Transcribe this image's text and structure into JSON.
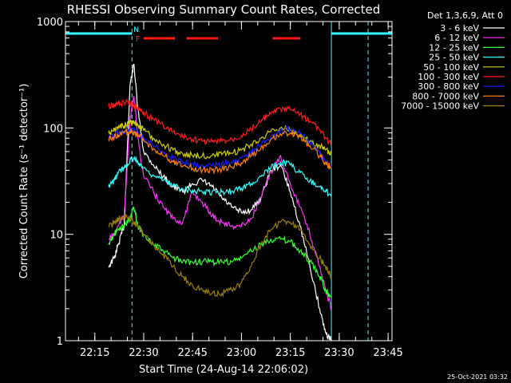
{
  "chart_data": {
    "type": "line",
    "title": "RHESSI Observing Summary Count Rates, Corrected",
    "xlabel": "Start Time (24-Aug-14 22:06:02)",
    "ylabel": "Corrected Count Rate (s⁻¹ detector⁻¹)",
    "ylog": true,
    "ylim": [
      1,
      1000
    ],
    "xlim": [
      22.1,
      23.77
    ],
    "x_ticks": [
      "22:15",
      "22:30",
      "22:45",
      "23:00",
      "23:15",
      "23:30",
      "23:45"
    ],
    "x_tick_values": [
      22.25,
      22.5,
      22.75,
      23.0,
      23.25,
      23.5,
      23.75
    ],
    "y_ticks": [
      "1",
      "10",
      "100",
      "1000"
    ],
    "y_tick_values": [
      1,
      10,
      100,
      1000
    ],
    "legend_title": "Det 1,3,6,9, Att 0",
    "legend_position": "right",
    "footer_timestamp": "25-Oct-2021 03:32",
    "flare_marker_label": "F",
    "night_marker_label": "N",
    "night_intervals": [
      [
        22.1,
        22.44
      ],
      [
        23.46,
        23.77
      ]
    ],
    "saa_lines": [
      22.44,
      23.75
    ],
    "flare_intervals": [
      [
        22.5,
        22.66
      ],
      [
        22.72,
        22.88
      ],
      [
        23.16,
        23.3
      ]
    ],
    "series": [
      {
        "name": "3 - 6 keV",
        "color": "#ffffff",
        "x": [
          22.32,
          22.35,
          22.37,
          22.4,
          22.43,
          22.45,
          22.47,
          22.5,
          22.55,
          22.6,
          22.65,
          22.7,
          22.75,
          22.8,
          22.85,
          22.9,
          22.95,
          23.0,
          23.05,
          23.1,
          23.15,
          23.2,
          23.25,
          23.3,
          23.35,
          23.4,
          23.43,
          23.46
        ],
        "y": [
          5,
          6,
          8,
          12,
          250,
          400,
          150,
          60,
          45,
          35,
          28,
          25,
          30,
          32,
          28,
          22,
          18,
          16,
          17,
          22,
          40,
          45,
          25,
          12,
          5,
          2,
          1.2,
          1
        ]
      },
      {
        "name": "6 - 12 keV",
        "color": "#ff33ff",
        "x": [
          22.32,
          22.35,
          22.37,
          22.4,
          22.43,
          22.45,
          22.47,
          22.5,
          22.55,
          22.6,
          22.65,
          22.7,
          22.75,
          22.8,
          22.85,
          22.9,
          22.95,
          23.0,
          23.05,
          23.1,
          23.15,
          23.2,
          23.25,
          23.3,
          23.35,
          23.4,
          23.43,
          23.46
        ],
        "y": [
          9,
          10,
          12,
          15,
          120,
          200,
          80,
          35,
          25,
          18,
          14,
          13,
          25,
          20,
          15,
          13,
          12,
          12,
          14,
          22,
          38,
          55,
          30,
          18,
          10,
          5,
          3,
          2
        ]
      },
      {
        "name": "12 - 25 keV",
        "color": "#33ff33",
        "x": [
          22.32,
          22.35,
          22.37,
          22.4,
          22.43,
          22.45,
          22.47,
          22.5,
          22.55,
          22.6,
          22.65,
          22.7,
          22.75,
          22.8,
          22.85,
          22.9,
          22.95,
          23.0,
          23.05,
          23.1,
          23.15,
          23.2,
          23.25,
          23.3,
          23.35,
          23.4,
          23.43,
          23.46
        ],
        "y": [
          8,
          10,
          11,
          12,
          14,
          18,
          12,
          10,
          8,
          7,
          6,
          5.5,
          5.5,
          5.5,
          5.5,
          5.5,
          5.5,
          6,
          7,
          8,
          9,
          9,
          8.5,
          7,
          5.5,
          4,
          3,
          2.5
        ]
      },
      {
        "name": "25 - 50 keV",
        "color": "#33ffff",
        "x": [
          22.32,
          22.35,
          22.37,
          22.4,
          22.43,
          22.45,
          22.47,
          22.5,
          22.55,
          22.6,
          22.65,
          22.7,
          22.75,
          22.8,
          22.85,
          22.9,
          22.95,
          23.0,
          23.05,
          23.1,
          23.15,
          23.2,
          23.25,
          23.3,
          23.35,
          23.4,
          23.43,
          23.46
        ],
        "y": [
          28,
          32,
          38,
          42,
          50,
          52,
          48,
          42,
          36,
          32,
          29,
          27,
          26,
          25,
          25,
          25,
          25.5,
          27,
          30,
          35,
          42,
          48,
          45,
          38,
          32,
          28,
          25,
          24
        ]
      },
      {
        "name": "50 - 100 keV",
        "color": "#cccc00",
        "x": [
          22.32,
          22.35,
          22.37,
          22.4,
          22.43,
          22.45,
          22.47,
          22.5,
          22.55,
          22.6,
          22.65,
          22.7,
          22.75,
          22.8,
          22.85,
          22.9,
          22.95,
          23.0,
          23.05,
          23.1,
          23.15,
          23.2,
          23.25,
          23.3,
          23.35,
          23.4,
          23.43,
          23.46
        ],
        "y": [
          90,
          95,
          100,
          105,
          110,
          115,
          108,
          95,
          80,
          70,
          62,
          57,
          55,
          55,
          55,
          56,
          58,
          62,
          70,
          80,
          92,
          100,
          95,
          85,
          75,
          68,
          62,
          58
        ]
      },
      {
        "name": "100 - 300 keV",
        "color": "#ff1a1a",
        "x": [
          22.32,
          22.35,
          22.37,
          22.4,
          22.43,
          22.45,
          22.47,
          22.5,
          22.55,
          22.6,
          22.65,
          22.7,
          22.75,
          22.8,
          22.85,
          22.9,
          22.95,
          23.0,
          23.05,
          23.1,
          23.15,
          23.2,
          23.25,
          23.3,
          23.35,
          23.4,
          23.43,
          23.46
        ],
        "y": [
          160,
          165,
          170,
          172,
          170,
          165,
          155,
          140,
          120,
          105,
          92,
          83,
          78,
          75,
          74,
          75,
          78,
          85,
          98,
          115,
          135,
          150,
          148,
          135,
          115,
          95,
          80,
          70
        ]
      },
      {
        "name": "300 - 800 keV",
        "color": "#1a1aff",
        "x": [
          22.32,
          22.35,
          22.37,
          22.4,
          22.43,
          22.45,
          22.47,
          22.5,
          22.55,
          22.6,
          22.65,
          22.7,
          22.75,
          22.8,
          22.85,
          22.9,
          22.95,
          23.0,
          23.05,
          23.1,
          23.15,
          23.2,
          23.25,
          23.3,
          23.35,
          23.4,
          23.43,
          23.46
        ],
        "y": [
          82,
          86,
          90,
          93,
          95,
          95,
          90,
          80,
          68,
          58,
          52,
          48,
          46,
          45,
          45,
          46,
          48,
          52,
          60,
          70,
          82,
          95,
          98,
          88,
          72,
          58,
          48,
          42
        ]
      },
      {
        "name": "800 - 7000 keV",
        "color": "#ff8000",
        "x": [
          22.32,
          22.35,
          22.37,
          22.4,
          22.43,
          22.45,
          22.47,
          22.5,
          22.55,
          22.6,
          22.65,
          22.7,
          22.75,
          22.8,
          22.85,
          22.9,
          22.95,
          23.0,
          23.05,
          23.1,
          23.15,
          23.2,
          23.25,
          23.3,
          23.35,
          23.4,
          23.43,
          23.46
        ],
        "y": [
          78,
          82,
          86,
          90,
          92,
          92,
          86,
          76,
          64,
          55,
          48,
          44,
          42,
          40,
          40,
          41,
          43,
          47,
          55,
          65,
          78,
          88,
          90,
          82,
          68,
          55,
          47,
          42
        ]
      },
      {
        "name": "7000 - 15000 keV",
        "color": "#998000",
        "x": [
          22.32,
          22.35,
          22.37,
          22.4,
          22.43,
          22.45,
          22.47,
          22.5,
          22.55,
          22.6,
          22.65,
          22.7,
          22.75,
          22.8,
          22.85,
          22.9,
          22.95,
          23.0,
          23.05,
          23.1,
          23.15,
          23.2,
          23.25,
          23.3,
          23.35,
          23.4,
          23.43,
          23.46
        ],
        "y": [
          12,
          13,
          14,
          14.5,
          14,
          13,
          12,
          10,
          8,
          6.5,
          5,
          4,
          3.3,
          3,
          2.8,
          2.8,
          3,
          3.5,
          5,
          8,
          11,
          13,
          13,
          11,
          8,
          6,
          5,
          4
        ]
      }
    ]
  }
}
